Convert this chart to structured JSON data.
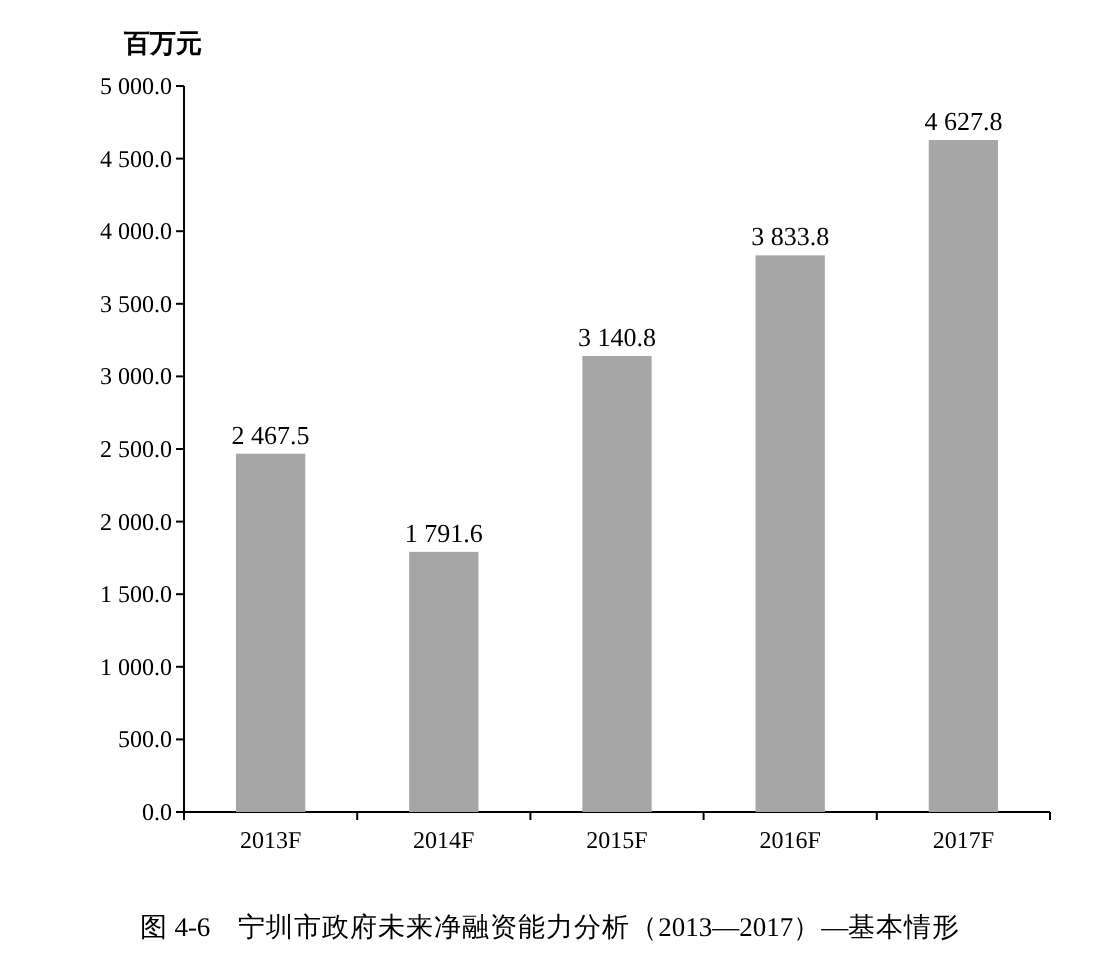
{
  "chart_data": {
    "type": "bar",
    "title": "图 4-6　宁圳市政府未来净融资能力分析（2013—2017）—基本情形",
    "ylabel": "百万元",
    "categories": [
      "2013F",
      "2014F",
      "2015F",
      "2016F",
      "2017F"
    ],
    "values": [
      2467.5,
      1791.6,
      3140.8,
      3833.8,
      4627.8
    ],
    "value_labels": [
      "2 467.5",
      "1 791.6",
      "3 140.8",
      "3 833.8",
      "4 627.8"
    ],
    "color": "#a6a6a6",
    "ylim": [
      0,
      5000
    ],
    "yticks": [
      {
        "value": 0,
        "label": "0.0"
      },
      {
        "value": 500,
        "label": "500.0"
      },
      {
        "value": 1000,
        "label": "1 000.0"
      },
      {
        "value": 1500,
        "label": "1 500.0"
      },
      {
        "value": 2000,
        "label": "2 000.0"
      },
      {
        "value": 2500,
        "label": "2 500.0"
      },
      {
        "value": 3000,
        "label": "3 000.0"
      },
      {
        "value": 3500,
        "label": "3 500.0"
      },
      {
        "value": 4000,
        "label": "4 000.0"
      },
      {
        "value": 4500,
        "label": "4 500.0"
      },
      {
        "value": 5000,
        "label": "5 000.0"
      }
    ],
    "grid": false
  }
}
